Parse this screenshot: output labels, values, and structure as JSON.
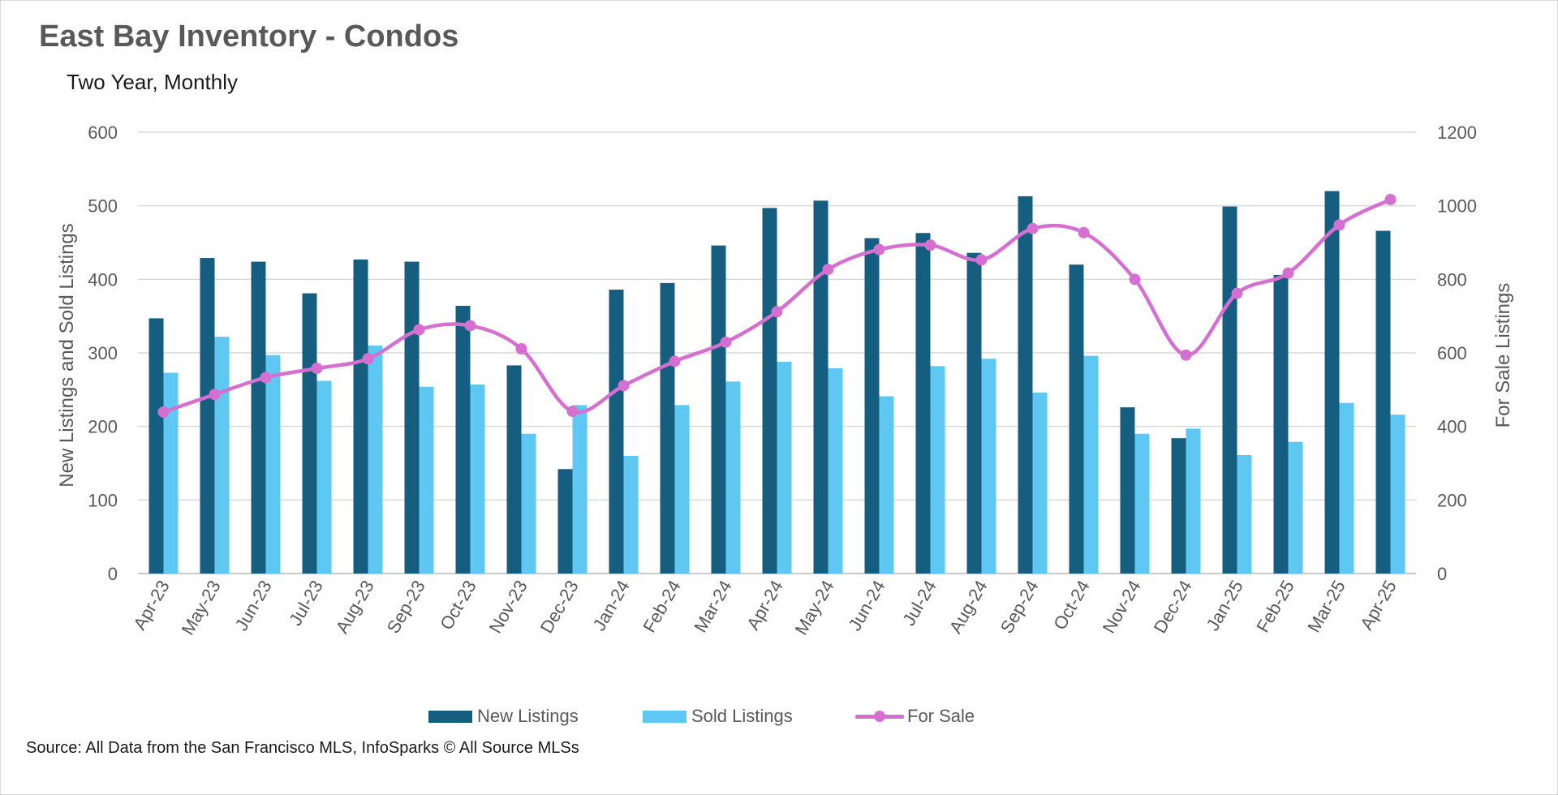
{
  "title": "East Bay Inventory - Condos",
  "subtitle": "Two Year, Monthly",
  "source": "Source: All Data from the San Francisco MLS, InfoSparks © All Source MLSs",
  "legend": {
    "new": "New Listings",
    "sold": "Sold Listings",
    "forsale": "For Sale"
  },
  "colors": {
    "new": "#165e80",
    "sold": "#5fc8f2",
    "forsale": "#d56fd1",
    "grid": "#d9d9d9",
    "axis_text": "#595959"
  },
  "chart_data": {
    "type": "bar",
    "categories": [
      "Apr-23",
      "May-23",
      "Jun-23",
      "Jul-23",
      "Aug-23",
      "Sep-23",
      "Oct-23",
      "Nov-23",
      "Dec-23",
      "Jan-24",
      "Feb-24",
      "Mar-24",
      "Apr-24",
      "May-24",
      "Jun-24",
      "Jul-24",
      "Aug-24",
      "Sep-24",
      "Oct-24",
      "Nov-24",
      "Dec-24",
      "Jan-25",
      "Feb-25",
      "Mar-25",
      "Apr-25"
    ],
    "series": [
      {
        "name": "New Listings",
        "type": "bar",
        "axis": "left",
        "values": [
          347,
          429,
          424,
          381,
          427,
          424,
          364,
          283,
          142,
          386,
          395,
          446,
          497,
          507,
          456,
          463,
          436,
          513,
          420,
          226,
          184,
          499,
          406,
          520,
          466
        ]
      },
      {
        "name": "Sold Listings",
        "type": "bar",
        "axis": "left",
        "values": [
          273,
          322,
          297,
          262,
          310,
          254,
          257,
          190,
          229,
          160,
          229,
          261,
          288,
          279,
          241,
          282,
          292,
          246,
          296,
          190,
          197,
          161,
          179,
          232,
          216
        ]
      },
      {
        "name": "For Sale",
        "type": "line",
        "axis": "right",
        "smooth": true,
        "values": [
          439,
          487,
          533,
          558,
          584,
          663,
          674,
          611,
          441,
          511,
          577,
          629,
          712,
          827,
          881,
          893,
          853,
          938,
          927,
          800,
          594,
          762,
          817,
          948,
          1017
        ]
      }
    ],
    "ylabel": "New Listings and Sold Listings",
    "y2label": "For Sale Listings",
    "ylim": [
      0,
      600
    ],
    "y2lim": [
      0,
      1200
    ],
    "yticks": [
      0,
      100,
      200,
      300,
      400,
      500,
      600
    ],
    "y2ticks": [
      0,
      200,
      400,
      600,
      800,
      1000,
      1200
    ],
    "grid": true,
    "legend_position": "bottom"
  }
}
